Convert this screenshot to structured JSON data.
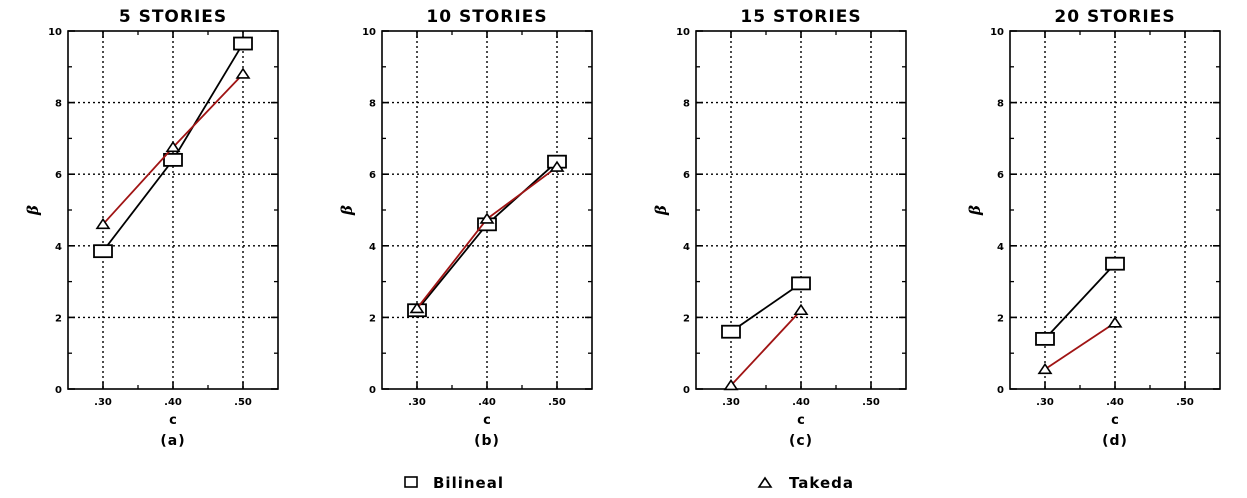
{
  "legend": {
    "bilineal": "Bilineal",
    "takeda": "Takeda"
  },
  "colors": {
    "bilineal": "#000000",
    "takeda": "#a01414",
    "grid": "#000000"
  },
  "chart_data": [
    {
      "type": "line",
      "title": "5  STORIES",
      "subtitle": "(a)",
      "xlabel": "c",
      "ylabel": "β",
      "x": [
        0.3,
        0.4,
        0.5
      ],
      "x_ticks": [
        ".30",
        ".40",
        ".50"
      ],
      "xlim": [
        0.25,
        0.55
      ],
      "ylim": [
        0,
        10
      ],
      "y_ticks": [
        "0",
        "2",
        "4",
        "6",
        "8",
        "10"
      ],
      "grid": true,
      "series": [
        {
          "name": "Bilineal",
          "marker": "square",
          "x": [
            0.3,
            0.4,
            0.5
          ],
          "values": [
            3.85,
            6.4,
            9.65
          ]
        },
        {
          "name": "Takeda",
          "marker": "triangle",
          "x": [
            0.3,
            0.4,
            0.5
          ],
          "values": [
            4.6,
            6.75,
            8.8
          ]
        }
      ]
    },
    {
      "type": "line",
      "title": "10  STORIES",
      "subtitle": "(b)",
      "xlabel": "c",
      "ylabel": "β",
      "x": [
        0.3,
        0.4,
        0.5
      ],
      "x_ticks": [
        ".30",
        ".40",
        ".50"
      ],
      "xlim": [
        0.25,
        0.55
      ],
      "ylim": [
        0,
        10
      ],
      "y_ticks": [
        "0",
        "2",
        "4",
        "6",
        "8",
        "10"
      ],
      "grid": true,
      "series": [
        {
          "name": "Bilineal",
          "marker": "square",
          "x": [
            0.3,
            0.4,
            0.5
          ],
          "values": [
            2.2,
            4.6,
            6.35
          ]
        },
        {
          "name": "Takeda",
          "marker": "triangle",
          "x": [
            0.3,
            0.4,
            0.5
          ],
          "values": [
            2.25,
            4.75,
            6.2
          ]
        }
      ]
    },
    {
      "type": "line",
      "title": "15  STORIES",
      "subtitle": "(c)",
      "xlabel": "c",
      "ylabel": "β",
      "x": [
        0.3,
        0.4,
        0.5
      ],
      "x_ticks": [
        ".30",
        ".40",
        ".50"
      ],
      "xlim": [
        0.25,
        0.55
      ],
      "ylim": [
        0,
        10
      ],
      "y_ticks": [
        "0",
        "2",
        "4",
        "6",
        "8",
        "10"
      ],
      "grid": true,
      "series": [
        {
          "name": "Bilineal",
          "marker": "square",
          "x": [
            0.3,
            0.4
          ],
          "values": [
            1.6,
            2.95
          ]
        },
        {
          "name": "Takeda",
          "marker": "triangle",
          "x": [
            0.3,
            0.4
          ],
          "values": [
            0.1,
            2.2
          ]
        }
      ]
    },
    {
      "type": "line",
      "title": "20  STORIES",
      "subtitle": "(d)",
      "xlabel": "c",
      "ylabel": "β",
      "x": [
        0.3,
        0.4,
        0.5
      ],
      "x_ticks": [
        ".30",
        ".40",
        ".50"
      ],
      "xlim": [
        0.25,
        0.55
      ],
      "ylim": [
        0,
        10
      ],
      "y_ticks": [
        "0",
        "2",
        "4",
        "6",
        "8",
        "10"
      ],
      "grid": true,
      "series": [
        {
          "name": "Bilineal",
          "marker": "square",
          "x": [
            0.3,
            0.4
          ],
          "values": [
            1.4,
            3.5
          ]
        },
        {
          "name": "Takeda",
          "marker": "triangle",
          "x": [
            0.3,
            0.4
          ],
          "values": [
            0.55,
            1.85
          ]
        }
      ]
    }
  ]
}
